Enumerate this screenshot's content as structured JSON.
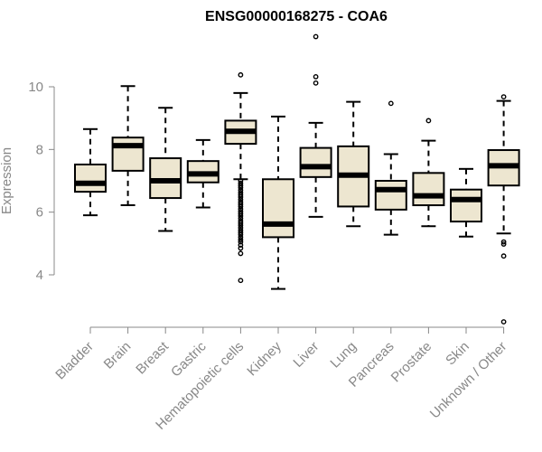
{
  "chart_data": {
    "type": "boxplot",
    "title": "ENSG00000168275 - COA6",
    "xlabel": "",
    "ylabel": "Expression",
    "ylim": [
      2.3,
      11.8
    ],
    "yticks": [
      4,
      6,
      8,
      10
    ],
    "colors": {
      "box_fill": "#ede6d0",
      "stroke": "#000000",
      "axis": "#888888",
      "title": "#000000"
    },
    "categories": [
      "Bladder",
      "Brain",
      "Breast",
      "Gastric",
      "Hematopoietic cells",
      "Kidney",
      "Liver",
      "Lung",
      "Pancreas",
      "Prostate",
      "Skin",
      "Unknown / Other"
    ],
    "boxes": [
      {
        "category": "Bladder",
        "whisker_low": 5.9,
        "q1": 6.65,
        "median": 6.92,
        "q3": 7.52,
        "whisker_high": 8.65,
        "outliers": []
      },
      {
        "category": "Brain",
        "whisker_low": 6.22,
        "q1": 7.32,
        "median": 8.12,
        "q3": 8.38,
        "whisker_high": 10.02,
        "outliers": []
      },
      {
        "category": "Breast",
        "whisker_low": 5.4,
        "q1": 6.45,
        "median": 7.0,
        "q3": 7.72,
        "whisker_high": 9.33,
        "outliers": []
      },
      {
        "category": "Gastric",
        "whisker_low": 6.15,
        "q1": 6.95,
        "median": 7.22,
        "q3": 7.63,
        "whisker_high": 8.3,
        "outliers": []
      },
      {
        "category": "Hematopoietic cells",
        "whisker_low": 7.05,
        "q1": 8.18,
        "median": 8.58,
        "q3": 8.92,
        "whisker_high": 9.8,
        "outliers": [
          10.38,
          7.0,
          6.92,
          6.85,
          6.78,
          6.7,
          6.62,
          6.55,
          6.48,
          6.4,
          6.32,
          6.25,
          6.18,
          6.1,
          6.02,
          5.95,
          5.88,
          5.8,
          5.72,
          5.65,
          5.58,
          5.5,
          5.42,
          5.35,
          5.28,
          5.2,
          5.12,
          5.05,
          4.95,
          4.85,
          4.68,
          3.82
        ]
      },
      {
        "category": "Kidney",
        "whisker_low": 3.55,
        "q1": 5.2,
        "median": 5.62,
        "q3": 7.05,
        "whisker_high": 9.05,
        "outliers": []
      },
      {
        "category": "Liver",
        "whisker_low": 5.85,
        "q1": 7.12,
        "median": 7.45,
        "q3": 8.05,
        "whisker_high": 8.85,
        "outliers": [
          11.6,
          10.32,
          10.12
        ]
      },
      {
        "category": "Lung",
        "whisker_low": 5.55,
        "q1": 6.18,
        "median": 7.18,
        "q3": 8.1,
        "whisker_high": 9.52,
        "outliers": []
      },
      {
        "category": "Pancreas",
        "whisker_low": 5.28,
        "q1": 6.08,
        "median": 6.72,
        "q3": 7.0,
        "whisker_high": 7.85,
        "outliers": [
          9.47
        ]
      },
      {
        "category": "Prostate",
        "whisker_low": 5.55,
        "q1": 6.22,
        "median": 6.52,
        "q3": 7.25,
        "whisker_high": 8.28,
        "outliers": [
          8.92
        ]
      },
      {
        "category": "Skin",
        "whisker_low": 5.22,
        "q1": 5.7,
        "median": 6.4,
        "q3": 6.72,
        "whisker_high": 7.38,
        "outliers": []
      },
      {
        "category": "Unknown / Other",
        "whisker_low": 5.32,
        "q1": 6.85,
        "median": 7.48,
        "q3": 7.98,
        "whisker_high": 9.55,
        "outliers": [
          9.68,
          5.05,
          4.98,
          4.6,
          2.5
        ]
      }
    ]
  }
}
